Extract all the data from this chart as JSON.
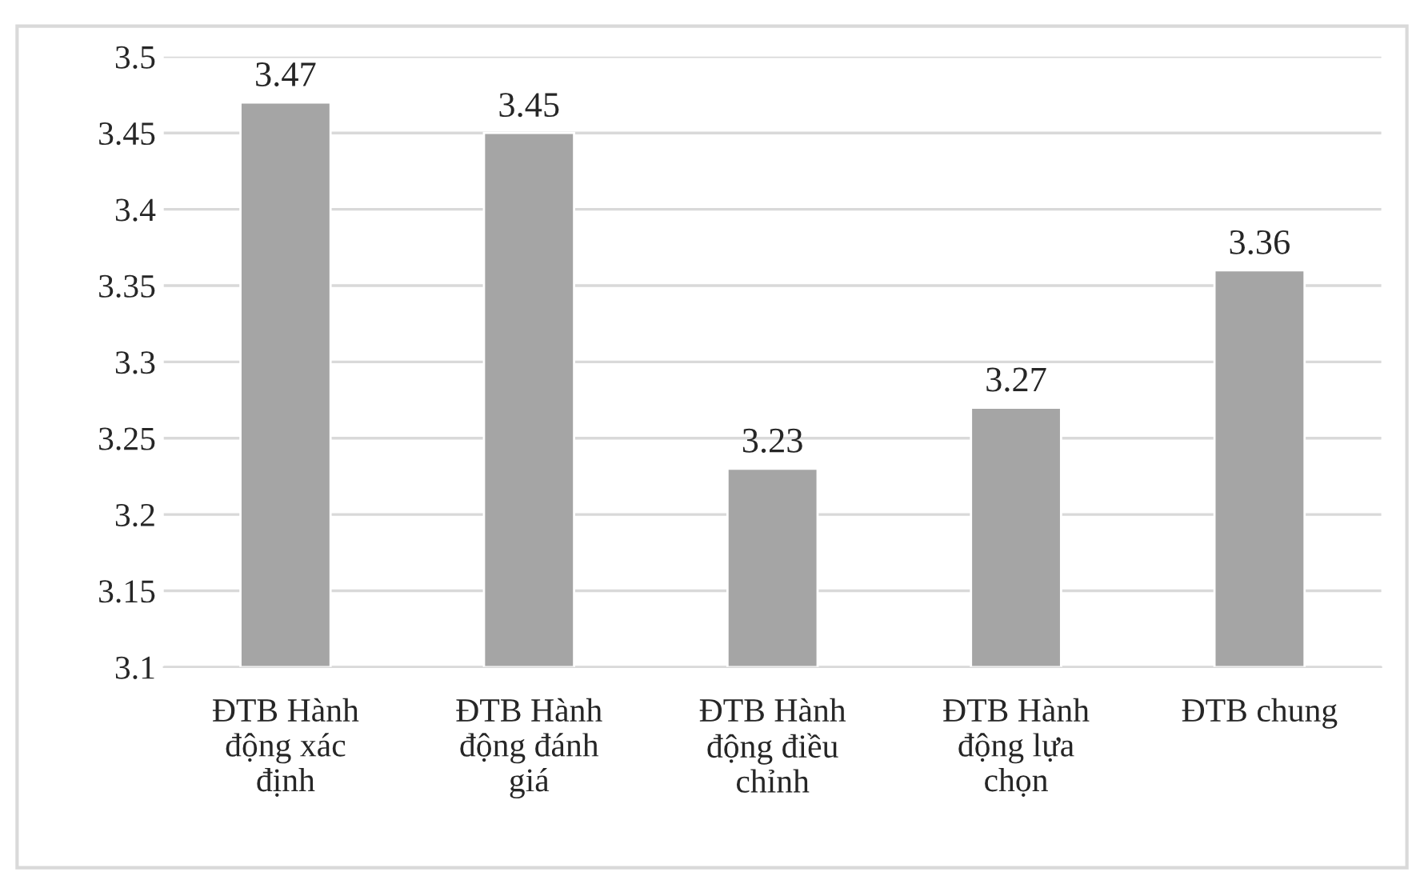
{
  "chart_data": {
    "type": "bar",
    "categories": [
      "ĐTB Hành động xác định",
      "ĐTB Hành động đánh giá",
      "ĐTB Hành động điều chỉnh",
      "ĐTB Hành động lựa chọn",
      "ĐTB chung"
    ],
    "values": [
      3.47,
      3.45,
      3.23,
      3.27,
      3.36
    ],
    "color": "#a5a5a5",
    "ylim": [
      3.1,
      3.5
    ],
    "yticks": [
      3.1,
      3.15,
      3.2,
      3.25,
      3.3,
      3.35,
      3.4,
      3.45,
      3.5
    ],
    "grid": "y",
    "data_labels": true,
    "legend": false
  }
}
